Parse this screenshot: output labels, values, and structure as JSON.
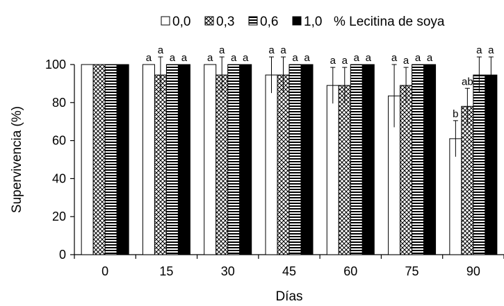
{
  "chart_data": {
    "type": "bar",
    "xlabel": "Días",
    "ylabel": "Supervivencia (%)",
    "ylim": [
      0,
      100
    ],
    "yticks": [
      0,
      20,
      40,
      60,
      80,
      100
    ],
    "categories": [
      "0",
      "15",
      "30",
      "45",
      "60",
      "75",
      "90"
    ],
    "legend_position": "top-center",
    "legend_suffix": "% Lecitina de soya",
    "series": [
      {
        "name": "0,0",
        "pattern": "white",
        "values": [
          100,
          100,
          100,
          94.5,
          89,
          83.5,
          61
        ],
        "errors": [
          0,
          0,
          0,
          9.5,
          9.5,
          16.5,
          9.5
        ],
        "labels": [
          "",
          "a",
          "a",
          "a",
          "a",
          "a",
          "b"
        ]
      },
      {
        "name": "0,3",
        "pattern": "crosshatch",
        "values": [
          100,
          94.5,
          94.5,
          94.5,
          89,
          89,
          78
        ],
        "errors": [
          0,
          9.5,
          9.5,
          9.5,
          9.5,
          9.5,
          9.5
        ],
        "labels": [
          "",
          "a",
          "a",
          "a",
          "a",
          "a",
          "ab"
        ]
      },
      {
        "name": "0,6",
        "pattern": "horizontal-lines",
        "values": [
          100,
          100,
          100,
          100,
          100,
          100,
          94.5
        ],
        "errors": [
          0,
          0,
          0,
          0,
          0,
          0,
          9.5
        ],
        "labels": [
          "",
          "a",
          "a",
          "a",
          "a",
          "a",
          "a"
        ]
      },
      {
        "name": "1,0",
        "pattern": "black",
        "values": [
          100,
          100,
          100,
          100,
          100,
          100,
          94.5
        ],
        "errors": [
          0,
          0,
          0,
          0,
          0,
          0,
          9.5
        ],
        "labels": [
          "",
          "a",
          "a",
          "a",
          "a",
          "a",
          "a"
        ]
      }
    ]
  }
}
